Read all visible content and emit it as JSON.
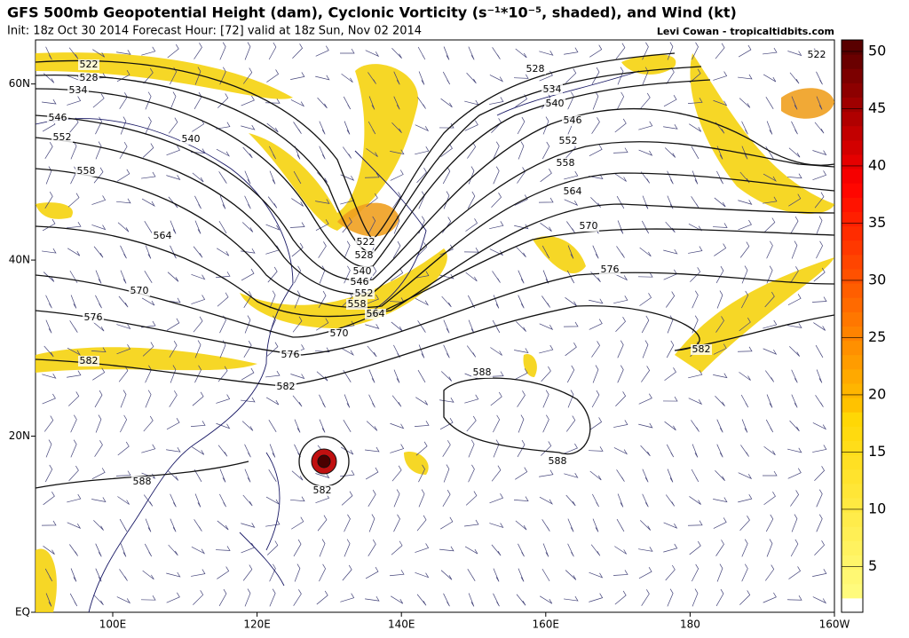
{
  "map": {
    "title": "GFS 500mb Geopotential Height (dam), Cyclonic Vorticity (s⁻¹*10⁻⁵, shaded), and Wind (kt)",
    "subtitle": "Init: 18z Oct 30 2014 Forecast Hour: [72] valid at 18z Sun, Nov 02 2014",
    "credit": "Levi Cowan - tropicaltidbits.com",
    "lonlim": [
      89.3,
      200
    ],
    "latlim": [
      0,
      65
    ],
    "lon_ticks": [
      {
        "value": 100,
        "label": "100E"
      },
      {
        "value": 120,
        "label": "120E"
      },
      {
        "value": 140,
        "label": "140E"
      },
      {
        "value": 160,
        "label": "160E"
      },
      {
        "value": 180,
        "label": "180"
      },
      {
        "value": 200,
        "label": "160W"
      }
    ],
    "lat_ticks": [
      {
        "value": 60,
        "label": "60N"
      },
      {
        "value": 40,
        "label": "40N"
      },
      {
        "value": 20,
        "label": "20N"
      },
      {
        "value": 0,
        "label": "EQ"
      }
    ],
    "contour_labels": [
      522,
      528,
      534,
      546,
      552,
      540,
      558,
      564,
      570,
      576,
      582,
      522,
      528,
      540,
      546,
      552,
      558,
      564,
      570,
      576,
      582,
      528,
      534,
      540,
      546,
      552,
      558,
      564,
      570,
      576,
      582,
      588,
      588,
      588,
      582,
      522
    ],
    "colorbar": {
      "lim": [
        1,
        51
      ],
      "ticks": [
        5,
        10,
        15,
        20,
        25,
        30,
        35,
        40,
        45,
        50
      ]
    }
  }
}
